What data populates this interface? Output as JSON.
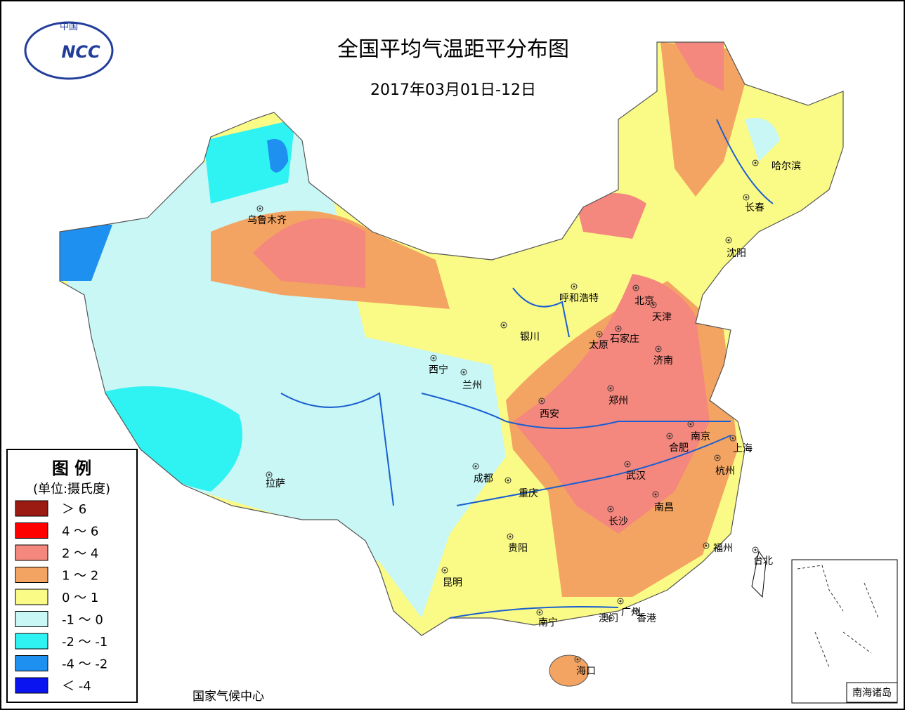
{
  "logo": {
    "country": "中国",
    "org": "NCC"
  },
  "header": {
    "title": "全国平均气温距平分布图",
    "subtitle": "2017年03月01日-12日"
  },
  "legend": {
    "title": "图 例",
    "unit": "(单位:摄氏度)",
    "items": [
      {
        "label": "＞ 6",
        "color": "#9b1a12"
      },
      {
        "label": "4 ～ 6",
        "color": "#ff0000"
      },
      {
        "label": "2 ～ 4",
        "color": "#f4877e"
      },
      {
        "label": "1 ～ 2",
        "color": "#f4a462"
      },
      {
        "label": "0 ～ 1",
        "color": "#fafa87"
      },
      {
        "label": "-1 ～ 0",
        "color": "#c8f7f5"
      },
      {
        "label": "-2 ～ -1",
        "color": "#2ff2f2"
      },
      {
        "label": "-4 ～ -2",
        "color": "#1e90f0"
      },
      {
        "label": "＜ -4",
        "color": "#0a14f0"
      }
    ]
  },
  "cities": [
    "乌鲁木齐",
    "哈尔滨",
    "长春",
    "沈阳",
    "呼和浩特",
    "北京",
    "天津",
    "石家庄",
    "太原",
    "济南",
    "银川",
    "西宁",
    "兰州",
    "西安",
    "郑州",
    "南京",
    "合肥",
    "上海",
    "杭州",
    "武汉",
    "成都",
    "重庆",
    "拉萨",
    "南昌",
    "长沙",
    "贵阳",
    "福州",
    "台北",
    "昆明",
    "南宁",
    "广州",
    "澳门",
    "香港",
    "海口"
  ],
  "footer": "国家气候中心",
  "inset": {
    "label": "南海诸岛"
  }
}
